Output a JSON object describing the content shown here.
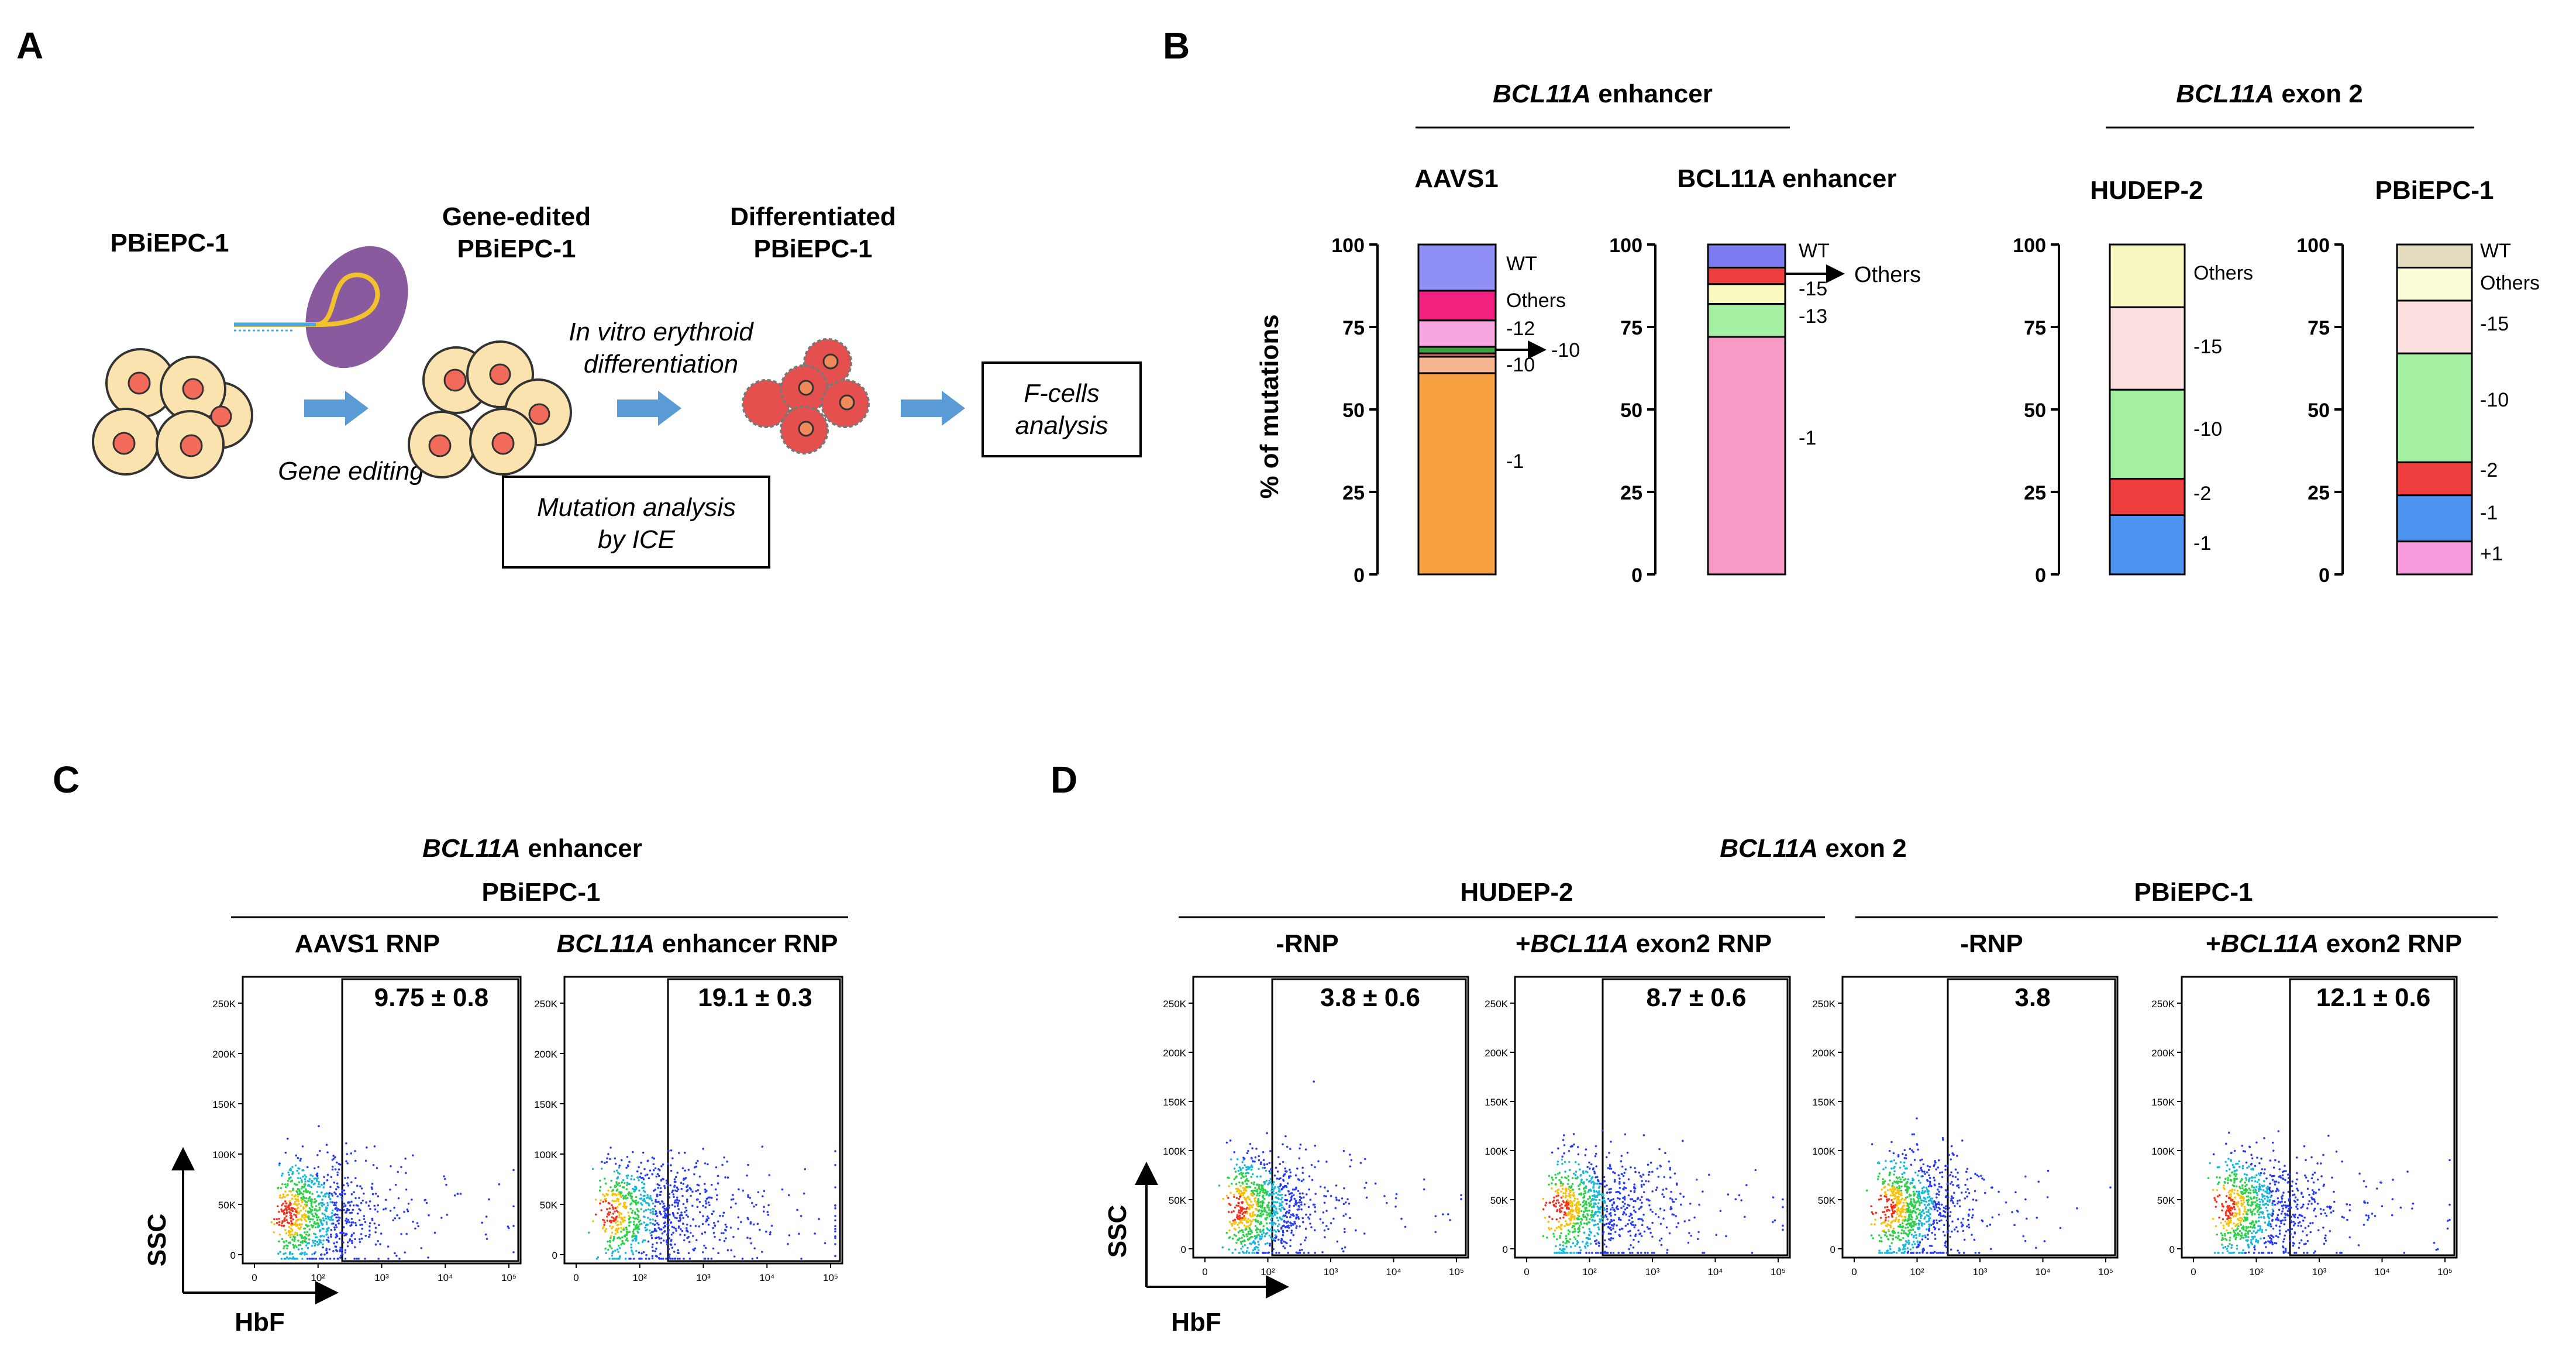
{
  "panel_labels": {
    "A": "A",
    "B": "B",
    "C": "C",
    "D": "D"
  },
  "panel_A": {
    "cell_start": "PBiEPC-1",
    "cell_edited_1": "Gene-edited",
    "cell_edited_2": "PBiEPC-1",
    "cell_diff_1": "Differentiated",
    "cell_diff_2": "PBiEPC-1",
    "step_editing": "Gene editing",
    "step_diff_1": "In vitro erythroid",
    "step_diff_2": "differentiation",
    "box_mutation_1": "Mutation analysis",
    "box_mutation_2": "by ICE",
    "box_fcells_1": "F-cells",
    "box_fcells_2": "analysis",
    "colors": {
      "cell_fill": "#fbe3b0",
      "nucleus": "#f26a5a",
      "cas9": "#8a5a9e",
      "arrow": "#5b9bd5",
      "diff_cell": "#e5504f"
    }
  },
  "panel_B": {
    "group_left_gene": "BCL11A",
    "group_left_rest": " enhancer",
    "group_right_gene": "BCL11A",
    "group_right_rest": " exon 2",
    "y_axis_label": "% of mutations"
  },
  "chart_data": [
    {
      "type": "bar",
      "title": "AAVS1",
      "ylabel": "% of mutations",
      "ylim": [
        0,
        100
      ],
      "yticks": [
        "0",
        "25",
        "50",
        "75",
        "100"
      ],
      "segments": [
        {
          "name": "-1",
          "value": 61,
          "color": "#f7a042"
        },
        {
          "name": "-10",
          "value": 5,
          "color": "#f6b58f"
        },
        {
          "name": "-10",
          "value": 1,
          "color": "#f07070"
        },
        {
          "name": "-10",
          "value": 2,
          "color": "#3da13d"
        },
        {
          "name": "-12",
          "value": 8,
          "color": "#f7a6e2"
        },
        {
          "name": "Others",
          "value": 9,
          "color": "#f2207f"
        },
        {
          "name": "WT",
          "value": 14,
          "color": "#8e8ef5"
        }
      ],
      "labels": [
        "WT",
        "Others",
        "-12",
        "-10",
        "-1"
      ],
      "arrow_label": "-10"
    },
    {
      "type": "bar",
      "title": "BCL11A enhancer",
      "ylabel": "% of mutations",
      "ylim": [
        0,
        100
      ],
      "yticks": [
        "0",
        "25",
        "50",
        "75",
        "100"
      ],
      "segments": [
        {
          "name": "-1",
          "value": 72,
          "color": "#f79ac6"
        },
        {
          "name": "-13",
          "value": 10,
          "color": "#a3f0a3"
        },
        {
          "name": "-15",
          "value": 6,
          "color": "#fafac0"
        },
        {
          "name": "Others",
          "value": 5,
          "color": "#ef3e3e"
        },
        {
          "name": "WT",
          "value": 7,
          "color": "#7c7cf0"
        }
      ],
      "labels": [
        "WT",
        "-15",
        "-13",
        "-1"
      ],
      "arrow_label": "Others"
    },
    {
      "type": "bar",
      "title": "HUDEP-2",
      "ylabel": "% of mutations",
      "ylim": [
        0,
        100
      ],
      "yticks": [
        "0",
        "25",
        "50",
        "75",
        "100"
      ],
      "segments": [
        {
          "name": "-1",
          "value": 18,
          "color": "#4d94f0"
        },
        {
          "name": "-2",
          "value": 11,
          "color": "#ef3e3e"
        },
        {
          "name": "-10",
          "value": 27,
          "color": "#a3f0a3"
        },
        {
          "name": "-15",
          "value": 25,
          "color": "#fce0e0"
        },
        {
          "name": "Others",
          "value": 19,
          "color": "#f7f8c0"
        }
      ],
      "labels": [
        "Others",
        "-15",
        "-10",
        "-2",
        "-1"
      ]
    },
    {
      "type": "bar",
      "title": "PBiEPC-1",
      "ylabel": "% of mutations",
      "ylim": [
        0,
        100
      ],
      "yticks": [
        "0",
        "25",
        "50",
        "75",
        "100"
      ],
      "segments": [
        {
          "name": "+1",
          "value": 10,
          "color": "#f79ae0"
        },
        {
          "name": "-1",
          "value": 14,
          "color": "#4d94f0"
        },
        {
          "name": "-2",
          "value": 10,
          "color": "#ef3e3e"
        },
        {
          "name": "-10",
          "value": 33,
          "color": "#a3f0a3"
        },
        {
          "name": "-15",
          "value": 16,
          "color": "#fce0e0"
        },
        {
          "name": "Others",
          "value": 10,
          "color": "#fbfbd8"
        },
        {
          "name": "WT",
          "value": 7,
          "color": "#e6dcc0"
        }
      ],
      "labels": [
        "WT",
        "Others",
        "-15",
        "-10",
        "-2",
        "-1",
        "+1"
      ]
    },
    {
      "type": "scatter",
      "title": "AAVS1 RNP",
      "xlabel": "HbF",
      "ylabel": "SSC",
      "gate_value": "9.75 ± 0.8",
      "xticks": [
        "0",
        "10²",
        "10³",
        "10⁴",
        "10⁵"
      ],
      "yticks": [
        "0",
        "50K",
        "100K",
        "150K",
        "200K",
        "250K"
      ]
    },
    {
      "type": "scatter",
      "title": "BCL11A enhancer RNP",
      "xlabel": "HbF",
      "ylabel": "SSC",
      "gate_value": "19.1 ± 0.3",
      "xticks": [
        "0",
        "10²",
        "10³",
        "10⁴",
        "10⁵"
      ],
      "yticks": [
        "0",
        "50K",
        "100K",
        "150K",
        "200K",
        "250K"
      ]
    },
    {
      "type": "scatter",
      "title": "-RNP (HUDEP-2)",
      "xlabel": "HbF",
      "ylabel": "SSC",
      "gate_value": "3.8 ± 0.6",
      "xticks": [
        "0",
        "10²",
        "10³",
        "10⁴",
        "10⁵"
      ],
      "yticks": [
        "0",
        "50K",
        "100K",
        "150K",
        "200K",
        "250K"
      ]
    },
    {
      "type": "scatter",
      "title": "+BCL11A exon2 RNP (HUDEP-2)",
      "xlabel": "HbF",
      "ylabel": "SSC",
      "gate_value": "8.7 ± 0.6",
      "xticks": [
        "0",
        "10²",
        "10³",
        "10⁴",
        "10⁵"
      ],
      "yticks": [
        "0",
        "50K",
        "100K",
        "150K",
        "200K",
        "250K"
      ]
    },
    {
      "type": "scatter",
      "title": "-RNP (PBiEPC-1)",
      "xlabel": "HbF",
      "ylabel": "SSC",
      "gate_value": "3.8",
      "xticks": [
        "0",
        "10²",
        "10³",
        "10⁴",
        "10⁵"
      ],
      "yticks": [
        "0",
        "50K",
        "100K",
        "150K",
        "200K",
        "250K"
      ]
    },
    {
      "type": "scatter",
      "title": "+BCL11A exon2 RNP (PBiEPC-1)",
      "xlabel": "HbF",
      "ylabel": "SSC",
      "gate_value": "12.1 ± 0.6",
      "xticks": [
        "0",
        "10²",
        "10³",
        "10⁴",
        "10⁵"
      ],
      "yticks": [
        "0",
        "50K",
        "100K",
        "150K",
        "200K",
        "250K"
      ]
    }
  ],
  "panel_C": {
    "header_gene": "BCL11A",
    "header_rest": " enhancer",
    "cell_line": "PBiEPC-1",
    "col1": "AAVS1 RNP",
    "col2_gene": "BCL11A",
    "col2_rest": " enhancer RNP",
    "axis_y": "SSC",
    "axis_x": "HbF"
  },
  "panel_D": {
    "header_gene": "BCL11A",
    "header_rest": " exon 2",
    "line1": "HUDEP-2",
    "line2": "PBiEPC-1",
    "col_minus": "-RNP",
    "col_plus_prefix": "+",
    "col_plus_gene": "BCL11A",
    "col_plus_rest": " exon2 RNP",
    "axis_y": "SSC",
    "axis_x": "HbF"
  }
}
